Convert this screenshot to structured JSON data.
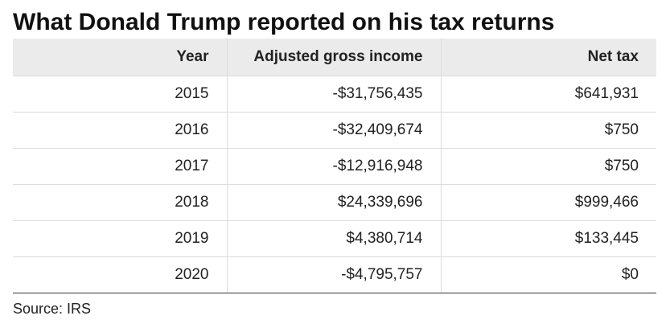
{
  "chart_data": {
    "type": "table",
    "title": "What Donald Trump reported on his tax returns",
    "columns": [
      "Year",
      "Adjusted gross income",
      "Net tax"
    ],
    "rows": [
      [
        "2015",
        "-$31,756,435",
        "$641,931"
      ],
      [
        "2016",
        "-$32,409,674",
        "$750"
      ],
      [
        "2017",
        "-$12,916,948",
        "$750"
      ],
      [
        "2018",
        "$24,339,696",
        "$999,466"
      ],
      [
        "2019",
        "$4,380,714",
        "$133,445"
      ],
      [
        "2020",
        "-$4,795,757",
        "$0"
      ]
    ],
    "source": "Source: IRS"
  }
}
